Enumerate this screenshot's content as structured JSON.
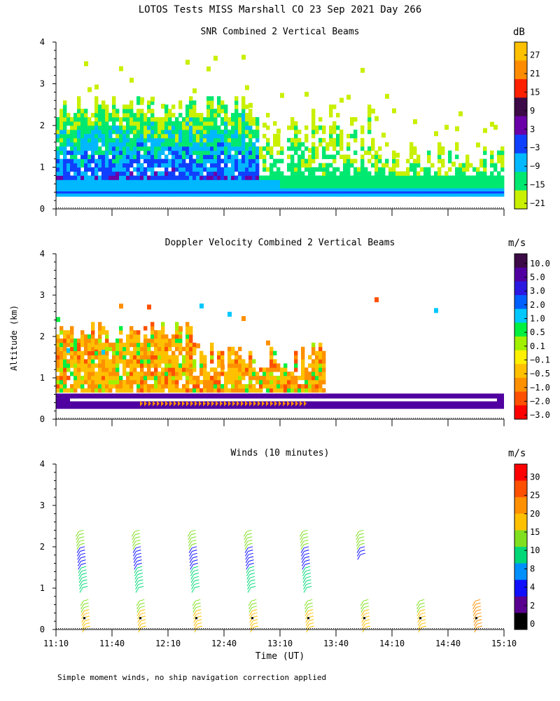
{
  "figure_title": "LOTOS Tests MISS Marshall CO  23 Sep 2021 Day 266",
  "y_axis_label": "Altitude (km)",
  "x_axis_label": "Time (UT)",
  "footnote": "Simple moment winds, no ship navigation correction applied",
  "chart_data": [
    {
      "type": "heatmap",
      "title": "SNR Combined 2 Vertical Beams",
      "colorbar_units": "dB",
      "colorbar_ticks": [
        "27",
        "21",
        "15",
        "9",
        "3",
        "−3",
        "−9",
        "−15",
        "−21"
      ],
      "colorbar_colors": [
        "#FFC000",
        "#FF8C00",
        "#FF2000",
        "#3C0A46",
        "#6A00A8",
        "#1040FF",
        "#00B8FF",
        "#00E870",
        "#C8F000"
      ],
      "ylim": [
        0,
        4
      ],
      "y_ticks": [
        "0",
        "1",
        "2",
        "3",
        "4"
      ],
      "xlim": [
        "11:10",
        "15:10"
      ],
      "cells": [
        [
          0.3,
          0.3,
          0.7,
          0.6
        ],
        [
          0.3,
          0.3,
          0.75,
          0.6
        ],
        [
          0.3,
          0.3,
          0.9,
          0.6
        ],
        [
          0.3,
          0.3,
          1.0,
          0.6
        ],
        [
          0.3,
          0.3,
          1.0,
          0.6
        ],
        [
          0.3,
          0.3,
          1.2,
          0.6
        ],
        [
          0.3,
          0.3,
          1.4,
          0.6
        ],
        [
          0.3,
          0.3,
          1.5,
          0.6
        ],
        [
          0.3,
          0.3,
          1.6,
          0.6
        ],
        [
          0.3,
          0.3,
          1.7,
          0.6
        ],
        [
          0.3,
          0.3,
          1.9,
          0.6
        ],
        [
          0.3,
          0.3,
          2.0,
          0.6
        ],
        [
          0.3,
          0.3,
          2.1,
          0.6
        ],
        [
          0.3,
          0.3,
          2.2,
          0.6
        ],
        [
          0.3,
          0.3,
          2.2,
          0.6
        ],
        [
          0.3,
          0.3,
          2.3,
          0.6
        ],
        [
          -9,
          -15,
          -9,
          -9
        ],
        [
          -3,
          -9,
          -3,
          -9
        ],
        [
          -9,
          -9,
          -9,
          -9
        ],
        [
          -9,
          -3,
          -9,
          -15
        ],
        [
          -9,
          -9,
          -15,
          -9
        ],
        [
          -15,
          -9,
          -15,
          -15
        ],
        [
          -15,
          -15,
          -15,
          -21
        ],
        [
          -9,
          -15,
          -21,
          -21
        ],
        [
          -15,
          -15,
          -21,
          -21
        ],
        [
          -15,
          -21,
          -21,
          -21
        ],
        [
          -21,
          -21,
          -21,
          -21
        ],
        [
          -21,
          -21,
          -21,
          -21
        ],
        [
          -21,
          -21,
          -21,
          -21
        ],
        [
          -21,
          -21,
          -21,
          -21
        ],
        [
          -21,
          -21,
          -21,
          -21
        ],
        [
          -21,
          -21,
          -21,
          -21
        ]
      ]
    },
    {
      "type": "heatmap",
      "title": "Doppler Velocity Combined 2 Vertical Beams",
      "colorbar_units": "m/s",
      "colorbar_ticks": [
        "10.0",
        "5.0",
        "3.0",
        "2.0",
        "1.0",
        "0.5",
        "0.1",
        "−0.1",
        "−0.5",
        "−1.0",
        "−2.0",
        "−3.0"
      ],
      "colorbar_colors": [
        "#3C0A46",
        "#5000A0",
        "#2A18E0",
        "#0060FF",
        "#00C8FF",
        "#00F040",
        "#A0F000",
        "#FFF000",
        "#FFC000",
        "#FF9000",
        "#FF5000",
        "#FF0000"
      ],
      "ylim": [
        0,
        4
      ],
      "y_ticks": [
        "0",
        "1",
        "2",
        "3",
        "4"
      ],
      "xlim": [
        "11:10",
        "15:10"
      ],
      "cells": [
        [
          -1.0,
          -0.5,
          -1.0,
          -2.0
        ],
        [
          -0.5,
          -1.0,
          -0.5,
          -1.0
        ],
        [
          -1.0,
          -0.5,
          -1.0,
          -0.5
        ],
        [
          -0.5,
          -1.0,
          -2.0,
          -1.0
        ],
        [
          -1.0,
          -0.5,
          -0.5,
          -1.0
        ],
        [
          -0.5,
          -1.0,
          -1.0,
          -0.5
        ],
        [
          -1.0,
          -0.5,
          -0.5,
          -0.5
        ],
        [
          -0.5,
          -1.0,
          -0.5,
          -1.0
        ],
        [
          -1.0,
          -0.5,
          -1.0,
          -0.5
        ],
        [
          -0.5,
          -0.5,
          -2.0,
          -1.0
        ],
        [
          -1.0,
          -1.0,
          -0.5,
          -0.5
        ],
        [
          -0.5,
          -0.5,
          -0.5,
          -1.0
        ]
      ]
    },
    {
      "type": "barbs",
      "title": "Winds (10 minutes)",
      "colorbar_units": "m/s",
      "colorbar_ticks": [
        "30",
        "25",
        "20",
        "15",
        "10",
        "8",
        "4",
        "2",
        "0"
      ],
      "colorbar_colors": [
        "#FF0000",
        "#FF5000",
        "#FF9000",
        "#FFC000",
        "#80E020",
        "#00D878",
        "#0090FF",
        "#1010FF",
        "#5A0090",
        "#000000"
      ],
      "ylim": [
        0,
        4
      ],
      "y_ticks": [
        "0",
        "1",
        "2",
        "3",
        "4"
      ],
      "x_ticks": [
        "11:10",
        "11:40",
        "12:10",
        "12:40",
        "13:10",
        "13:40",
        "14:10",
        "14:40",
        "15:10"
      ],
      "xlim": [
        "11:10",
        "15:10"
      ],
      "profile_times": [
        "11:25",
        "11:55",
        "12:25",
        "12:55",
        "13:25",
        "13:55",
        "14:25",
        "14:55"
      ]
    }
  ]
}
